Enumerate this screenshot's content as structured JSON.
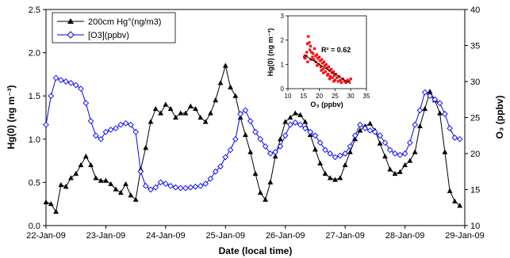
{
  "chart_data": [
    {
      "type": "line",
      "xlabel": "Date (local time)",
      "ylabel_left": "Hg(0) (ng m⁻³)",
      "ylabel_right": "O₃ (ppbv)",
      "x_ticks": [
        "22-Jan-09",
        "23-Jan-09",
        "24-Jan-09",
        "25-Jan-09",
        "26-Jan-09",
        "27-Jan-09",
        "28-Jan-09",
        "29-Jan-09"
      ],
      "x_range_days": [
        0,
        7
      ],
      "ylim_left": [
        0,
        2.5
      ],
      "ylim_right": [
        10,
        40
      ],
      "yticks_left": [
        "0.0",
        "0.5",
        "1.0",
        "1.5",
        "2.0",
        "2.5"
      ],
      "yticks_right": [
        "10",
        "15",
        "20",
        "25",
        "30",
        "35",
        "40"
      ],
      "legend_position": "top-left",
      "series": [
        {
          "name": "200cm Hg°(ng/m3)",
          "axis": "left",
          "color": "#000000",
          "marker": "filled-triangle",
          "x": [
            0.0,
            0.083,
            0.167,
            0.25,
            0.333,
            0.417,
            0.5,
            0.583,
            0.667,
            0.75,
            0.833,
            0.917,
            1.0,
            1.083,
            1.167,
            1.25,
            1.333,
            1.417,
            1.5,
            1.583,
            1.667,
            1.75,
            1.833,
            1.917,
            2.0,
            2.083,
            2.167,
            2.25,
            2.333,
            2.417,
            2.5,
            2.583,
            2.667,
            2.75,
            2.833,
            2.917,
            3.0,
            3.083,
            3.167,
            3.25,
            3.333,
            3.417,
            3.5,
            3.583,
            3.667,
            3.75,
            3.833,
            3.917,
            4.0,
            4.083,
            4.167,
            4.25,
            4.333,
            4.417,
            4.5,
            4.583,
            4.667,
            4.75,
            4.833,
            4.917,
            5.0,
            5.083,
            5.167,
            5.25,
            5.333,
            5.417,
            5.5,
            5.583,
            5.667,
            5.75,
            5.833,
            5.917,
            6.0,
            6.083,
            6.167,
            6.25,
            6.333,
            6.417,
            6.5,
            6.583,
            6.667,
            6.75,
            6.833,
            6.917
          ],
          "values": [
            0.27,
            0.25,
            0.16,
            0.47,
            0.45,
            0.55,
            0.6,
            0.7,
            0.8,
            0.7,
            0.55,
            0.52,
            0.52,
            0.48,
            0.42,
            0.38,
            0.48,
            0.35,
            0.3,
            0.65,
            0.9,
            1.2,
            1.35,
            1.3,
            1.4,
            1.35,
            1.25,
            1.3,
            1.3,
            1.38,
            1.35,
            1.25,
            1.2,
            1.3,
            1.45,
            1.65,
            1.85,
            1.6,
            1.5,
            1.25,
            1.05,
            0.85,
            0.6,
            0.38,
            0.3,
            0.5,
            0.8,
            1.0,
            1.2,
            1.25,
            1.3,
            1.28,
            1.2,
            1.05,
            0.88,
            0.72,
            0.6,
            0.55,
            0.53,
            0.55,
            0.7,
            0.85,
            1.0,
            1.1,
            1.15,
            1.18,
            1.1,
            0.95,
            0.8,
            0.65,
            0.6,
            0.62,
            0.7,
            0.75,
            0.85,
            1.15,
            1.35,
            1.55,
            1.45,
            1.3,
            0.85,
            0.4,
            0.28,
            0.23
          ]
        },
        {
          "name": "[O3](ppbv)",
          "axis": "right",
          "color": "#0000ff",
          "marker": "open-diamond",
          "x": [
            0.0,
            0.083,
            0.167,
            0.25,
            0.333,
            0.417,
            0.5,
            0.583,
            0.667,
            0.75,
            0.833,
            0.917,
            1.0,
            1.083,
            1.167,
            1.25,
            1.333,
            1.417,
            1.5,
            1.583,
            1.667,
            1.75,
            1.833,
            1.917,
            2.0,
            2.083,
            2.167,
            2.25,
            2.333,
            2.417,
            2.5,
            2.583,
            2.667,
            2.75,
            2.833,
            2.917,
            3.0,
            3.083,
            3.167,
            3.25,
            3.333,
            3.417,
            3.5,
            3.583,
            3.667,
            3.75,
            3.833,
            3.917,
            4.0,
            4.083,
            4.167,
            4.25,
            4.333,
            4.417,
            4.5,
            4.583,
            4.667,
            4.75,
            4.833,
            4.917,
            5.0,
            5.083,
            5.167,
            5.25,
            5.333,
            5.417,
            5.5,
            5.583,
            5.667,
            5.75,
            5.833,
            5.917,
            6.0,
            6.083,
            6.167,
            6.25,
            6.333,
            6.417,
            6.5,
            6.583,
            6.667,
            6.75,
            6.833,
            6.917
          ],
          "values": [
            24,
            28,
            30.5,
            30.2,
            30,
            29.8,
            29.5,
            29,
            27,
            24.5,
            22.5,
            22,
            23,
            23.3,
            23.5,
            24,
            24.2,
            24,
            23,
            17.5,
            15.5,
            15,
            15.3,
            16,
            15.8,
            15.5,
            15.3,
            15.2,
            15.2,
            15.3,
            15.4,
            15.5,
            15.8,
            16.5,
            17.5,
            18.2,
            19.5,
            20.5,
            22,
            25.5,
            26,
            24.5,
            23,
            22,
            21,
            20,
            20.2,
            21,
            22.5,
            24,
            24.3,
            24,
            23.5,
            23,
            22.5,
            21.5,
            20.5,
            20,
            19.5,
            19.7,
            20,
            21,
            22.5,
            24,
            23.5,
            23.2,
            23,
            22.5,
            21.5,
            20.5,
            20,
            19.8,
            20,
            21.5,
            24,
            26,
            28.5,
            28,
            27.5,
            27,
            25.5,
            23.5,
            22.2,
            22
          ]
        }
      ]
    },
    {
      "type": "scatter",
      "xlabel": "O₃ (ppbv)",
      "ylabel": "Hg(0) (ng m⁻³)",
      "xlim": [
        10,
        35
      ],
      "ylim": [
        0,
        3
      ],
      "x_ticks": [
        "10",
        "15",
        "20",
        "25",
        "30",
        "35"
      ],
      "y_ticks": [
        "0",
        "1",
        "2",
        "3"
      ],
      "annotation": "R² = 0.62",
      "point_color": "#ff0000",
      "trendline": {
        "x": [
          15,
          30
        ],
        "y": [
          1.4,
          0.2
        ]
      },
      "points": [
        [
          15.2,
          1.3
        ],
        [
          15.5,
          1.25
        ],
        [
          15.8,
          1.35
        ],
        [
          16,
          1.5
        ],
        [
          16.2,
          1.85
        ],
        [
          16.5,
          2.15
        ],
        [
          16.8,
          1.9
        ],
        [
          17,
          1.6
        ],
        [
          17.2,
          1.75
        ],
        [
          17.5,
          1.5
        ],
        [
          17.8,
          1.3
        ],
        [
          18,
          1.45
        ],
        [
          18.3,
          1.2
        ],
        [
          18.5,
          1.65
        ],
        [
          18.8,
          1.35
        ],
        [
          19,
          1.1
        ],
        [
          19.2,
          1.4
        ],
        [
          19.5,
          1.25
        ],
        [
          19.8,
          1.0
        ],
        [
          20,
          1.3
        ],
        [
          20.2,
          1.15
        ],
        [
          20.5,
          0.9
        ],
        [
          20.8,
          1.2
        ],
        [
          21,
          1.05
        ],
        [
          21.2,
          0.8
        ],
        [
          21.5,
          1.1
        ],
        [
          21.8,
          0.95
        ],
        [
          22,
          0.7
        ],
        [
          22.2,
          1.0
        ],
        [
          22.5,
          0.85
        ],
        [
          22.8,
          0.6
        ],
        [
          23,
          0.9
        ],
        [
          23.2,
          0.75
        ],
        [
          23.5,
          0.5
        ],
        [
          23.8,
          0.8
        ],
        [
          24,
          0.65
        ],
        [
          24.2,
          0.45
        ],
        [
          24.5,
          0.7
        ],
        [
          24.8,
          0.55
        ],
        [
          25,
          0.35
        ],
        [
          25.3,
          0.6
        ],
        [
          25.6,
          0.45
        ],
        [
          26,
          0.3
        ],
        [
          26.3,
          0.5
        ],
        [
          26.7,
          0.35
        ],
        [
          27,
          0.25
        ],
        [
          27.5,
          0.4
        ],
        [
          28,
          0.3
        ],
        [
          28.5,
          0.25
        ],
        [
          29,
          0.35
        ],
        [
          29.5,
          0.3
        ],
        [
          30,
          0.4
        ],
        [
          16.3,
          1.1
        ],
        [
          17.3,
          1.2
        ],
        [
          19.3,
          0.95
        ],
        [
          21.3,
          0.65
        ],
        [
          23.3,
          0.4
        ],
        [
          24.6,
          0.3
        ],
        [
          22.6,
          0.55
        ],
        [
          20.6,
          0.75
        ]
      ]
    }
  ]
}
